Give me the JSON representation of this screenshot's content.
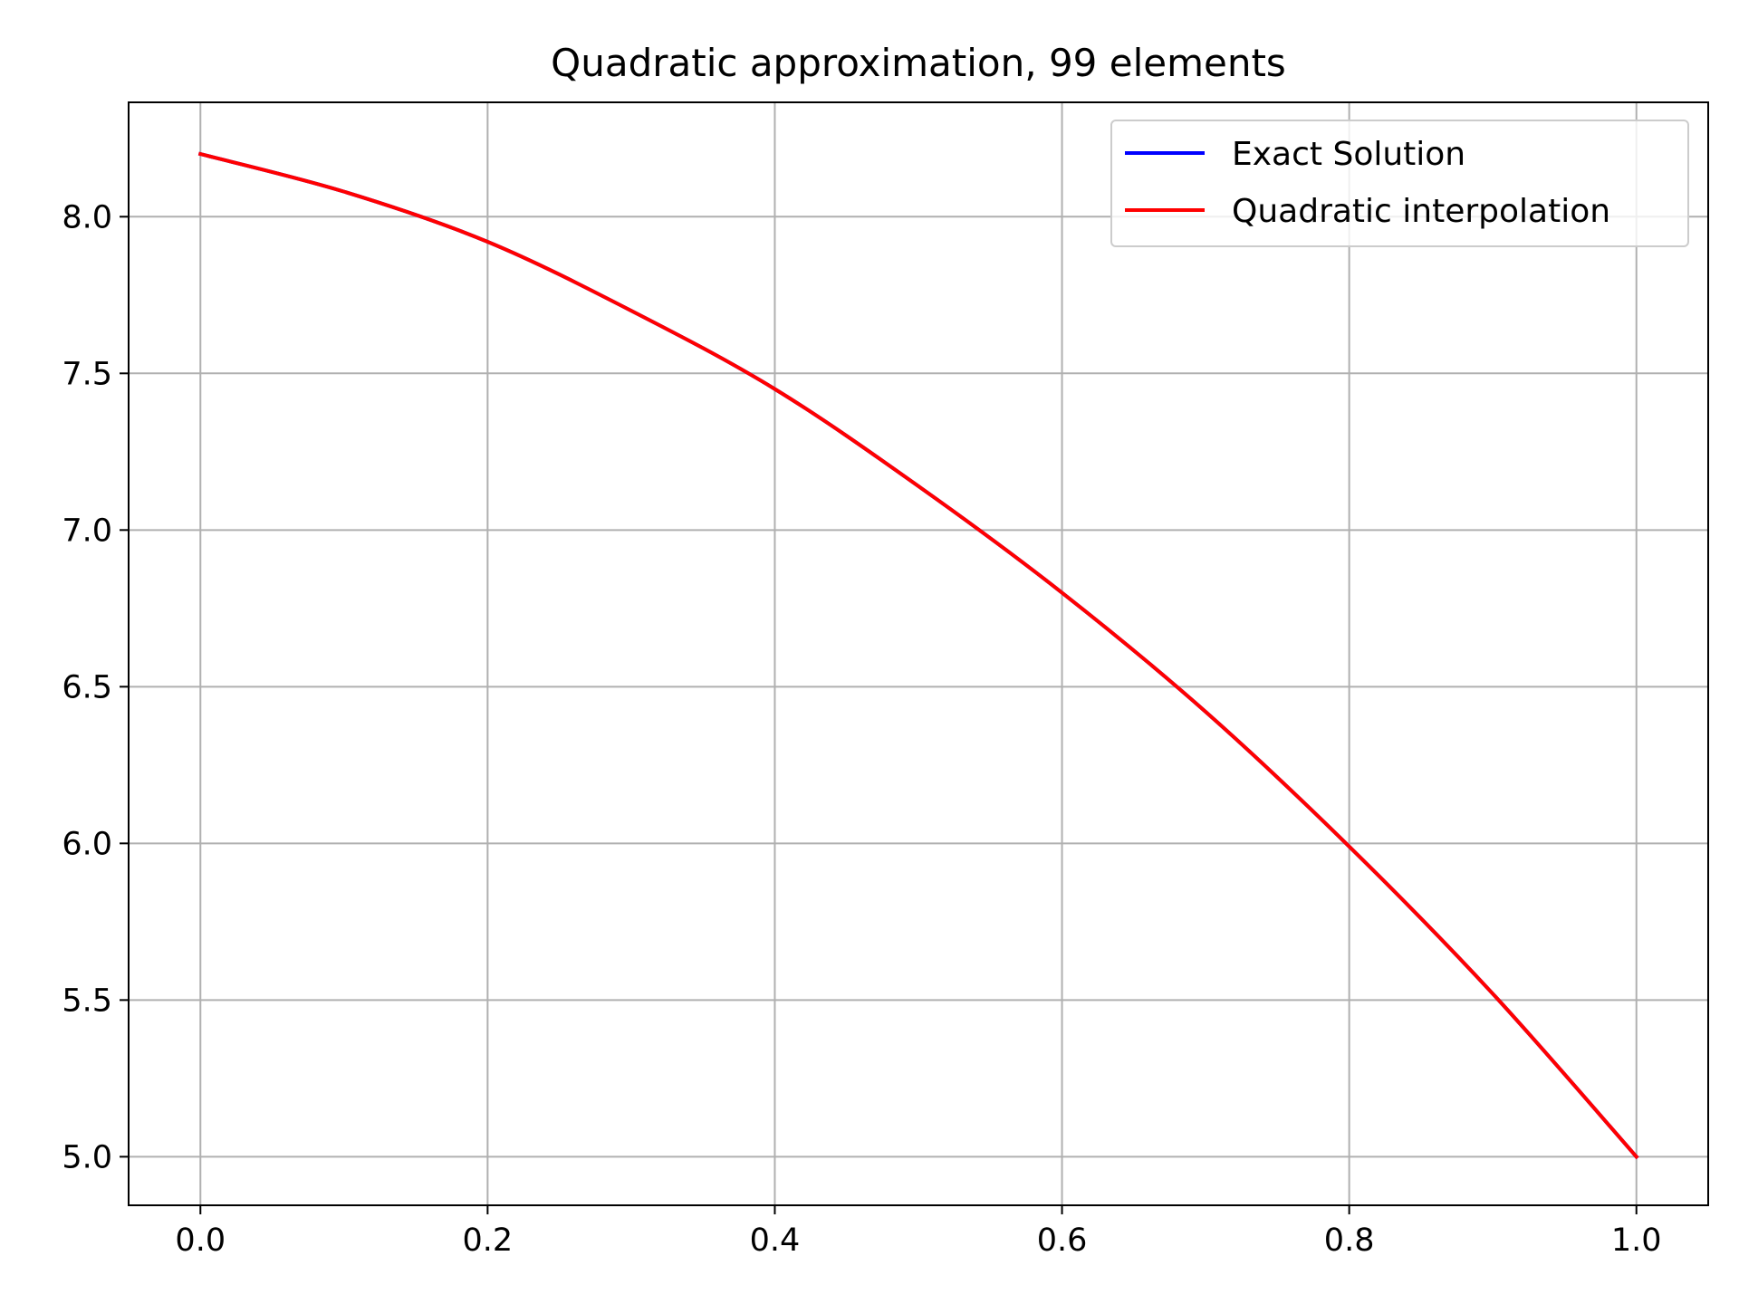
{
  "chart_data": {
    "type": "line",
    "title": "Quadratic approximation, 99 elements",
    "xlabel": "",
    "ylabel": "",
    "xlim": [
      -0.05,
      1.05
    ],
    "ylim": [
      4.845,
      8.365
    ],
    "x_ticks": [
      0.0,
      0.2,
      0.4,
      0.6,
      0.8,
      1.0
    ],
    "x_tick_labels": [
      "0.0",
      "0.2",
      "0.4",
      "0.6",
      "0.8",
      "1.0"
    ],
    "y_ticks": [
      5.0,
      5.5,
      6.0,
      6.5,
      7.0,
      7.5,
      8.0
    ],
    "y_tick_labels": [
      "5.0",
      "5.5",
      "6.0",
      "6.5",
      "7.0",
      "7.5",
      "8.0"
    ],
    "grid": true,
    "legend_position": "top-right",
    "x": [
      0.0,
      0.1,
      0.2,
      0.3,
      0.4,
      0.5,
      0.6,
      0.7,
      0.8,
      0.9,
      1.0
    ],
    "series": [
      {
        "name": "Exact Solution",
        "color": "#0000ff",
        "values": [
          8.2,
          8.08,
          7.92,
          7.7,
          7.45,
          7.14,
          6.8,
          6.42,
          5.99,
          5.52,
          5.0
        ]
      },
      {
        "name": "Quadratic interpolation",
        "color": "#ff0000",
        "values": [
          8.2,
          8.08,
          7.92,
          7.7,
          7.45,
          7.14,
          6.8,
          6.42,
          5.99,
          5.52,
          5.0
        ]
      }
    ]
  }
}
